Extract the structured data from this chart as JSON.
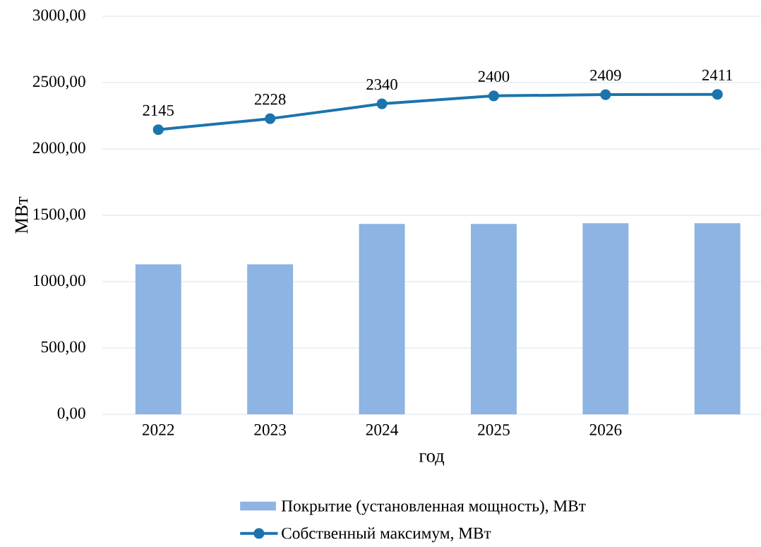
{
  "chart_data": {
    "type": "bar",
    "xlabel": "год",
    "ylabel": "МВт",
    "categories": [
      "2022",
      "2023",
      "2024",
      "2025",
      "2026",
      null
    ],
    "series": [
      {
        "name": "Покрытие (установленная мощность), МВт",
        "color": "#8db4e2",
        "values": [
          1130,
          1130,
          1435,
          1435,
          1440,
          1440
        ]
      },
      {
        "name": "Собственный максимум, МВт",
        "type": "line",
        "color": "#1b74ae",
        "marker": "circle",
        "values": [
          2145,
          2228,
          2340,
          2400,
          2409,
          2411
        ],
        "value_labels": [
          "2145",
          "2228",
          "2340",
          "2400",
          "2409",
          "2411"
        ]
      }
    ],
    "ylim": [
      0,
      3000
    ],
    "yticks": [
      {
        "value": 0,
        "label": "0,00"
      },
      {
        "value": 500,
        "label": "500,00"
      },
      {
        "value": 1000,
        "label": "1000,00"
      },
      {
        "value": 1500,
        "label": "1500,00"
      },
      {
        "value": 2000,
        "label": "2000,00"
      },
      {
        "value": 2500,
        "label": "2500,00"
      },
      {
        "value": 3000,
        "label": "3000,00"
      }
    ],
    "grid": "y",
    "legend": "bottom"
  }
}
